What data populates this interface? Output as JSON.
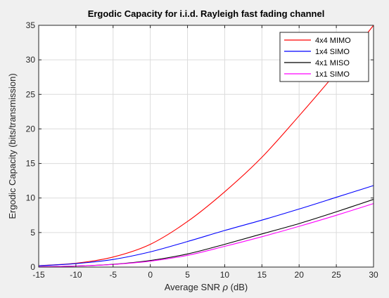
{
  "chart_data": {
    "type": "line",
    "title": "Ergodic Capacity for i.i.d. Rayleigh fast fading channel",
    "xlabel_prefix": "Average SNR ",
    "xlabel_symbol": "ρ",
    "xlabel_suffix": " (dB)",
    "ylabel": "Ergodic Capacity (bits/transmission)",
    "xlim": [
      -15,
      30
    ],
    "ylim": [
      0,
      35
    ],
    "xticks": [
      -15,
      -10,
      -5,
      0,
      5,
      10,
      15,
      20,
      25,
      30
    ],
    "yticks": [
      0,
      5,
      10,
      15,
      20,
      25,
      30,
      35
    ],
    "grid": true,
    "legend_position": "top-right",
    "x": [
      -15,
      -10,
      -5,
      0,
      5,
      10,
      15,
      20,
      25,
      30
    ],
    "series": [
      {
        "name": "4x4 MIMO",
        "color": "#ff0000",
        "values": [
          0.2,
          0.55,
          1.45,
          3.3,
          6.6,
          10.9,
          15.9,
          21.9,
          28.2,
          35.0
        ]
      },
      {
        "name": "1x4 SIMO",
        "color": "#0000ff",
        "values": [
          0.18,
          0.5,
          1.1,
          2.2,
          3.7,
          5.3,
          6.8,
          8.4,
          10.1,
          11.8
        ]
      },
      {
        "name": "4x1 MISO",
        "color": "#000000",
        "values": [
          0.05,
          0.15,
          0.4,
          0.95,
          1.9,
          3.3,
          4.8,
          6.3,
          8.0,
          9.8
        ]
      },
      {
        "name": "1x1 SIMO",
        "color": "#ff00ff",
        "values": [
          0.05,
          0.15,
          0.38,
          0.85,
          1.7,
          3.0,
          4.4,
          5.9,
          7.5,
          9.2
        ]
      }
    ]
  }
}
